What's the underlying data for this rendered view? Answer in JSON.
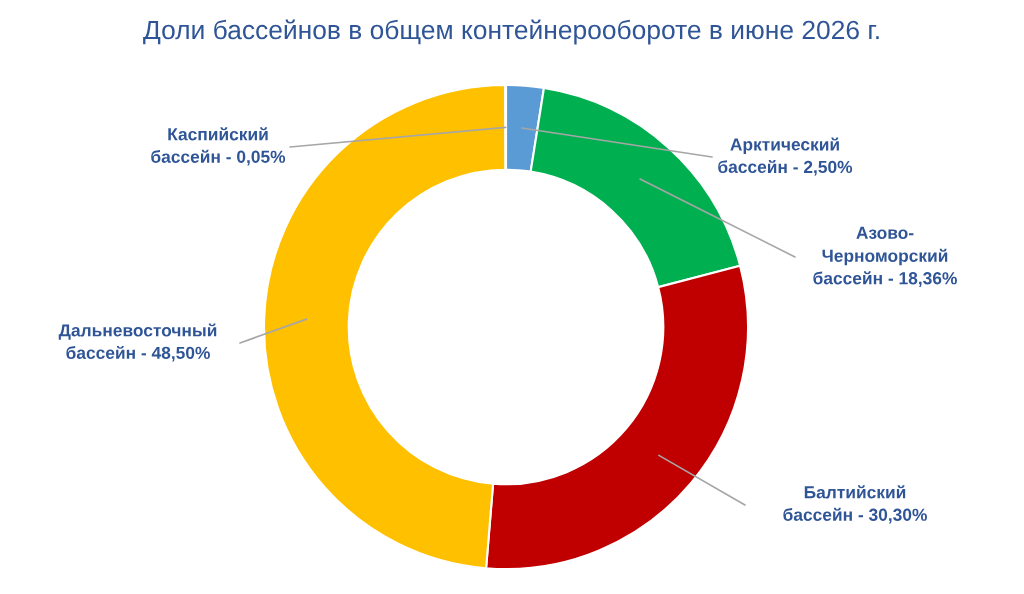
{
  "chart_data": {
    "type": "donut",
    "title": "Доли бассейнов в общем контейнерообороте в июне 2026 г.",
    "categories": [
      "Арктический\nбассейн",
      "Азово-\nЧерноморский\nбассейн",
      "Балтийский\nбассейн",
      "Дальневосточный\nбассейн",
      "Каспийский\nбассейн"
    ],
    "values": [
      2.5,
      18.36,
      30.3,
      48.5,
      0.05
    ],
    "value_labels": [
      "2,50%",
      "18,36%",
      "30,30%",
      "48,50%",
      "0,05%"
    ],
    "colors": [
      "#5b9bd5",
      "#00b050",
      "#c00000",
      "#ffc000",
      "#a5a5a5"
    ],
    "legend": false
  }
}
